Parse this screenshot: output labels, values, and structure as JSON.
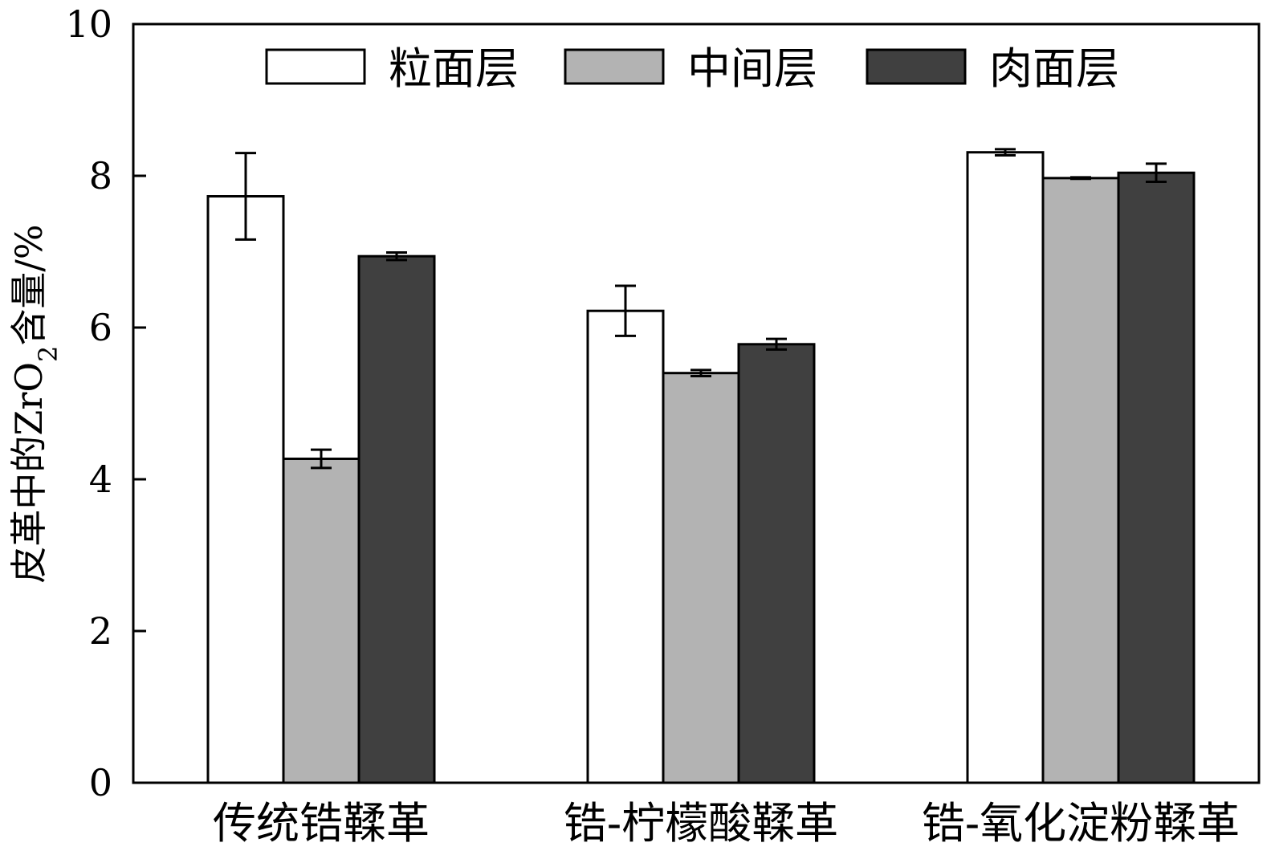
{
  "chart_data": {
    "type": "bar",
    "title": "",
    "xlabel": "",
    "ylabel": "皮革中的ZrO₂含量/%",
    "ylabel_parts": {
      "main": "皮革中的ZrO",
      "subscript": "2",
      "suffix": "含量/%"
    },
    "ylim": [
      0,
      10
    ],
    "yticks": [
      0,
      2,
      4,
      6,
      8,
      10
    ],
    "ytick_labels": [
      "0",
      "2",
      "4",
      "6",
      "8",
      "10"
    ],
    "categories": [
      "传统锆鞣革",
      "锆-柠檬酸鞣革",
      "锆-氧化淀粉鞣革"
    ],
    "series": [
      {
        "name": "粒面层",
        "color": "#ffffff",
        "values": [
          7.73,
          6.22,
          8.31
        ],
        "errors": [
          0.57,
          0.33,
          0.04
        ]
      },
      {
        "name": "中间层",
        "color": "#b3b3b3",
        "values": [
          4.27,
          5.4,
          7.97
        ],
        "errors": [
          0.12,
          0.04,
          0.01
        ]
      },
      {
        "name": "肉面层",
        "color": "#404040",
        "values": [
          6.94,
          5.78,
          8.04
        ],
        "errors": [
          0.05,
          0.07,
          0.12
        ]
      }
    ],
    "legend_position": "top",
    "grid": false
  }
}
